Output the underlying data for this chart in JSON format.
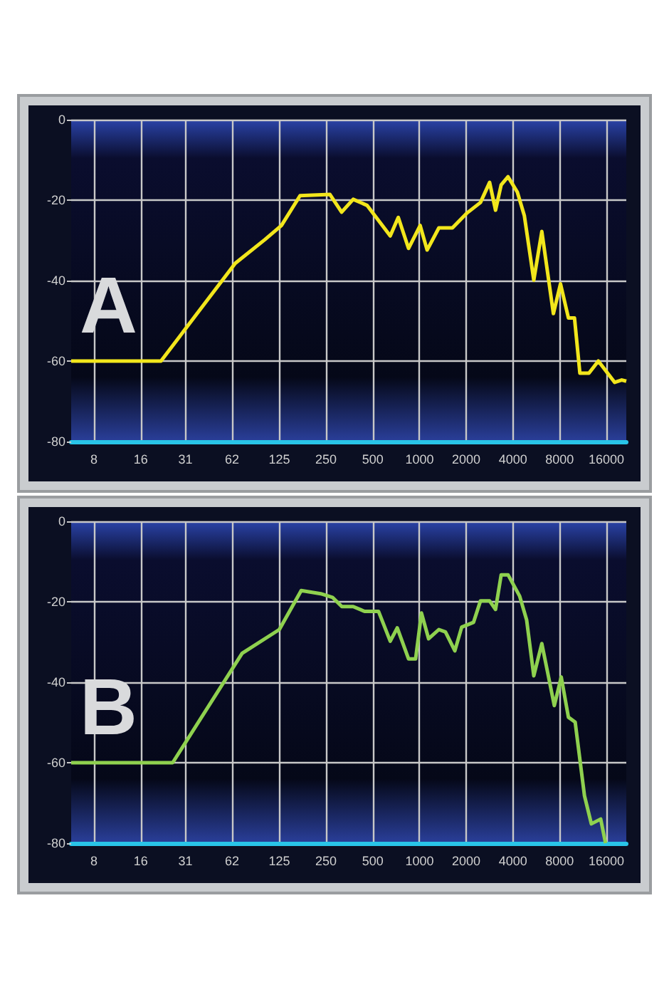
{
  "chart_data": [
    {
      "type": "line",
      "annotations": [
        "A"
      ],
      "log": "x",
      "grid": true,
      "xlim": [
        5.7,
        21500
      ],
      "xticks": [
        8,
        16,
        31,
        62,
        125,
        250,
        500,
        1000,
        2000,
        4000,
        8000,
        16000
      ],
      "ylim": [
        -80,
        0
      ],
      "yticks": [
        -80,
        -60,
        -40,
        -20,
        0
      ],
      "x": [
        5.7,
        21.6,
        65,
        101,
        129,
        170,
        265,
        315,
        374,
        459,
        648,
        730,
        850,
        1010,
        1120,
        1333,
        1630,
        2010,
        2470,
        2830,
        3090,
        3360,
        3720,
        4270,
        4740,
        5450,
        6140,
        7290,
        8100,
        9110,
        9970,
        10800,
        12350,
        14200,
        18100,
        20100,
        21500
      ],
      "series": [
        {
          "color": "#f2e61c",
          "values": [
            -60,
            -60,
            -35.7,
            -29.8,
            -26.3,
            -18.9,
            -18.6,
            -23,
            -19.8,
            -21.3,
            -28.9,
            -24.3,
            -32,
            -26.3,
            -32.4,
            -26.9,
            -26.9,
            -23.3,
            -20.6,
            -15.6,
            -22.5,
            -16.2,
            -14.2,
            -18,
            -23.9,
            -39.9,
            -27.8,
            -48.2,
            -40.8,
            -49.3,
            -49.3,
            -63,
            -63,
            -60,
            -65.3,
            -64.7,
            -65
          ]
        }
      ]
    },
    {
      "type": "line",
      "annotations": [
        "B"
      ],
      "log": "x",
      "grid": true,
      "xlim": [
        5.7,
        21500
      ],
      "xticks": [
        8,
        16,
        31,
        62,
        125,
        250,
        500,
        1000,
        2000,
        4000,
        8000,
        16000
      ],
      "ylim": [
        -80,
        0
      ],
      "yticks": [
        -80,
        -60,
        -40,
        -20,
        0
      ],
      "x": [
        5.7,
        25.7,
        72,
        125,
        173,
        231,
        275,
        316,
        374,
        443,
        545,
        648,
        719,
        850,
        944,
        1030,
        1145,
        1333,
        1470,
        1690,
        1870,
        2230,
        2470,
        2830,
        3090,
        3360,
        3720,
        4420,
        4900,
        5450,
        6140,
        7390,
        8190,
        9110,
        10070,
        11560,
        12800,
        14700,
        15800
      ],
      "series": [
        {
          "color": "#8fd14f",
          "values": [
            -60,
            -60,
            -32.8,
            -26.9,
            -17.2,
            -18,
            -18.9,
            -21.2,
            -21.2,
            -22.4,
            -22.4,
            -29.8,
            -26.5,
            -34.2,
            -34.2,
            -22.8,
            -29.2,
            -26.9,
            -27.5,
            -32.2,
            -26.3,
            -25.1,
            -19.8,
            -19.8,
            -21.9,
            -13.3,
            -13.3,
            -18.6,
            -24.5,
            -38.4,
            -30.4,
            -45.8,
            -38.7,
            -48.7,
            -49.9,
            -68.2,
            -75.2,
            -74,
            -80
          ]
        }
      ]
    }
  ]
}
